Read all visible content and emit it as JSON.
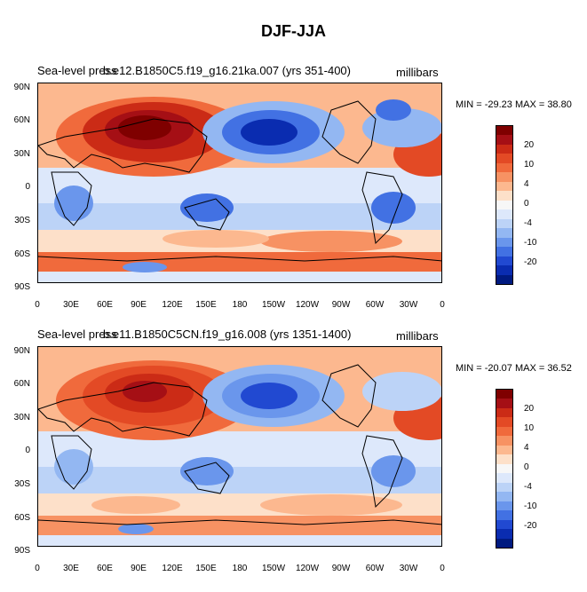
{
  "main_title": "DJF-JJA",
  "units": "millibars",
  "x_labels": [
    "0",
    "30E",
    "60E",
    "90E",
    "120E",
    "150E",
    "180",
    "150W",
    "120W",
    "90W",
    "60W",
    "30W",
    "0"
  ],
  "y_labels": [
    "90N",
    "60N",
    "30N",
    "0",
    "30S",
    "60S",
    "90S"
  ],
  "colorbar_labels": [
    "20",
    "10",
    "4",
    "0",
    "-4",
    "-10",
    "-20"
  ],
  "colors": {
    "levels": [
      "#7f0000",
      "#a50f15",
      "#cb2b16",
      "#e34a25",
      "#f06a3c",
      "#f79263",
      "#fcb88f",
      "#fde0c9",
      "#f7f7f7",
      "#dde8fb",
      "#bcd3f7",
      "#93b7f2",
      "#6a96ec",
      "#4271e3",
      "#2149d1",
      "#0a2cb0",
      "#001a80"
    ]
  },
  "panels": [
    {
      "title_a": "Sea-level press",
      "title_b": "b.e12.B1850C5.f19_g16.21ka.007 (yrs 351-400)",
      "stats": "MIN = -29.23 MAX =  38.80"
    },
    {
      "title_a": "Sea-level press",
      "title_b": "b.e11.B1850C5CN.f19_g16.008 (yrs 1351-1400)",
      "stats": "MIN = -20.07 MAX =  36.52"
    }
  ]
}
